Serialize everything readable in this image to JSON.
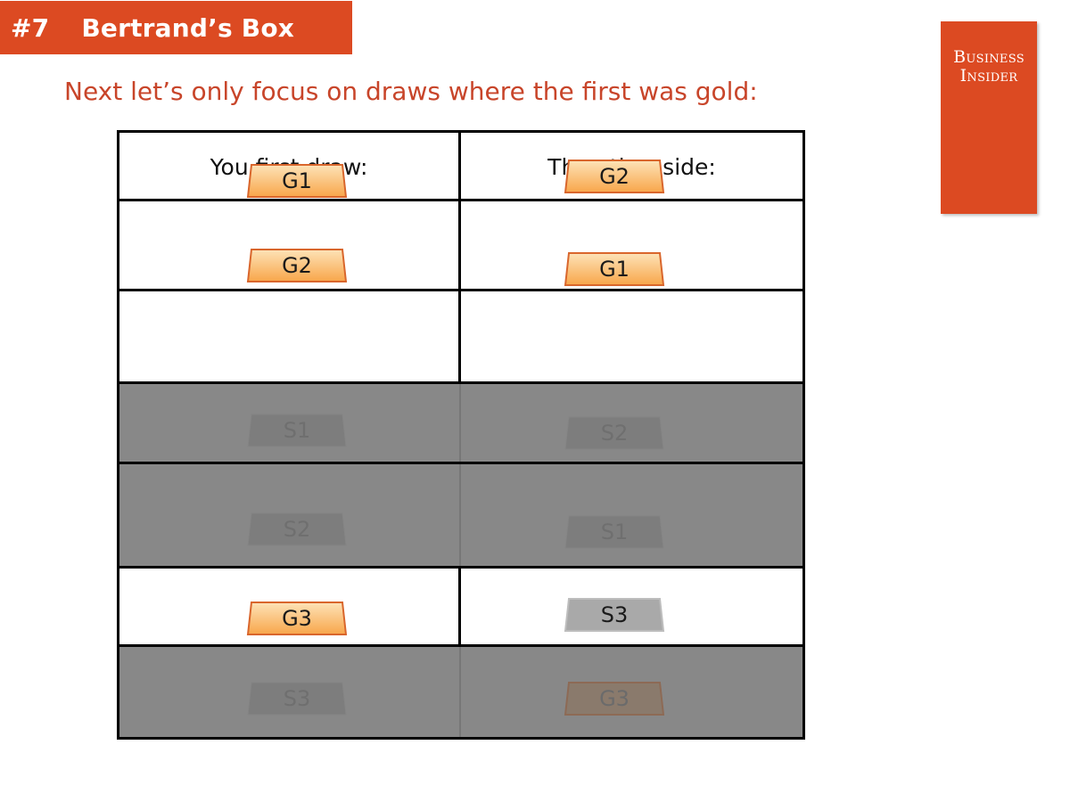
{
  "header": {
    "number": "#7",
    "title": "Bertrand’s Box"
  },
  "logo": {
    "line1": "Business",
    "line2": "Insider"
  },
  "subtitle": "Next let’s only focus on draws where the first was gold:",
  "table": {
    "headers": [
      "You first draw:",
      "The other side:"
    ],
    "rows": [
      {
        "first": "G1",
        "other": "G2",
        "dimmed": false,
        "first_kind": "gold",
        "other_kind": "gold"
      },
      {
        "first": "G2",
        "other": "G1",
        "dimmed": false,
        "first_kind": "gold",
        "other_kind": "gold"
      },
      {
        "first": "S1",
        "other": "S2",
        "dimmed": true,
        "first_kind": "silver",
        "other_kind": "silver"
      },
      {
        "first": "S2",
        "other": "S1",
        "dimmed": true,
        "first_kind": "silver",
        "other_kind": "silver"
      },
      {
        "first": "G3",
        "other": "S3",
        "dimmed": false,
        "first_kind": "gold",
        "other_kind": "silver"
      },
      {
        "first": "S3",
        "other": "G3",
        "dimmed": true,
        "first_kind": "silver",
        "other_kind": "gold"
      }
    ]
  },
  "colors": {
    "accent": "#dc4a22",
    "subtitle": "#c8452a",
    "gold_top": "#fde3b8",
    "gold_bottom": "#f8a64a",
    "gold_stroke": "#d9662c",
    "silver_fill": "#a9a9a9",
    "dim_row": "#888888"
  }
}
